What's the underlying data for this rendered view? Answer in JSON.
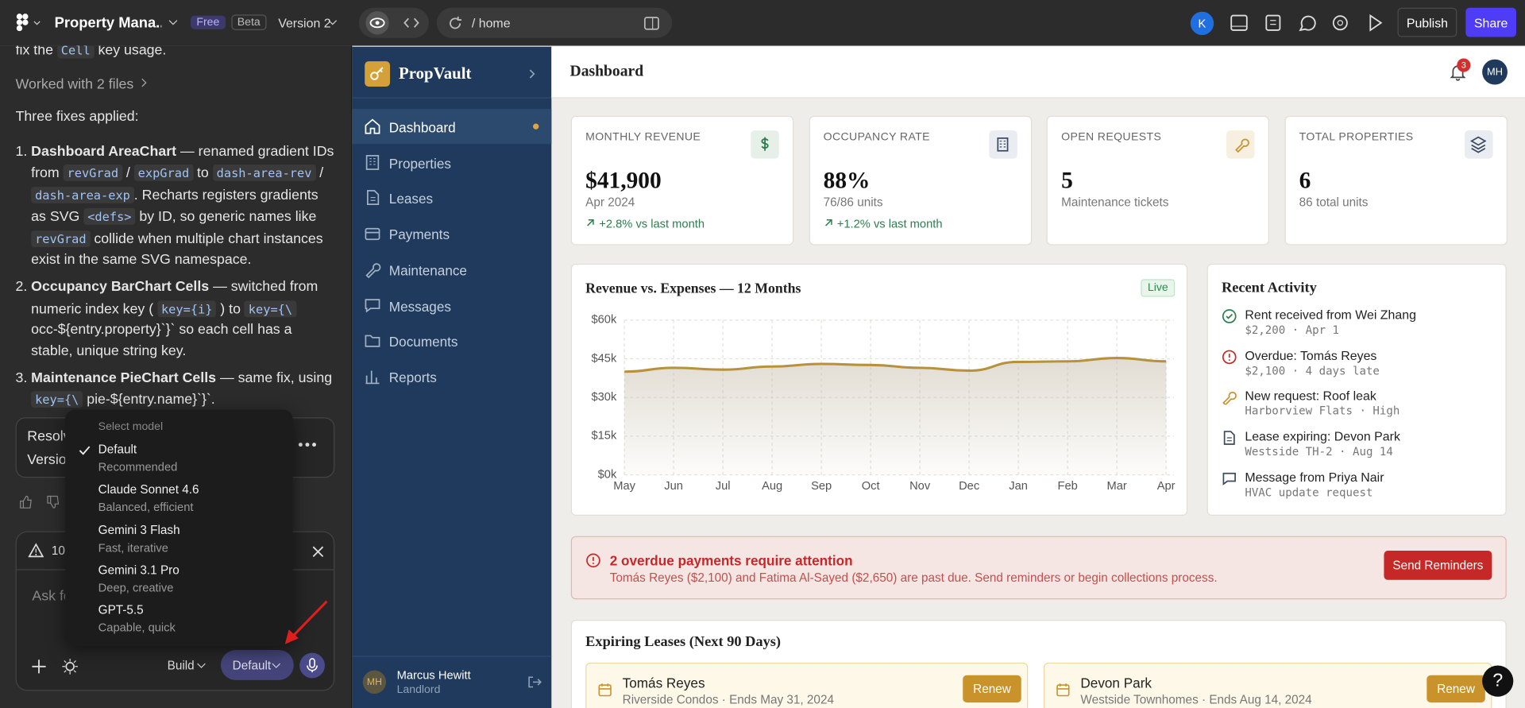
{
  "topbar": {
    "project": "Property Mana...",
    "plan": "Free",
    "badge": "Beta",
    "version": "Version 2",
    "url": "/ home",
    "avatar": "K",
    "publish": "Publish",
    "share": "Share"
  },
  "chat": {
    "intro": [
      {
        "t": "fix the "
      },
      {
        "t": "Cell",
        "code": true
      },
      {
        "t": " key usage."
      }
    ],
    "worked": "Worked with 2 files",
    "summary": "Three fixes applied:",
    "fixes": [
      [
        {
          "t": "Dashboard AreaChart",
          "bold": true
        },
        {
          "t": " — renamed gradient IDs from "
        },
        {
          "t": "revGrad",
          "code": true
        },
        {
          "t": " / "
        },
        {
          "t": "expGrad",
          "code": true
        },
        {
          "t": " to "
        },
        {
          "t": "dash-area-rev",
          "code": true
        },
        {
          "t": " / "
        },
        {
          "t": "dash-area-exp",
          "code": true
        },
        {
          "t": ". Recharts registers gradients as SVG "
        },
        {
          "t": "<defs>",
          "code": true
        },
        {
          "t": " by ID, so generic names like "
        },
        {
          "t": "revGrad",
          "code": true
        },
        {
          "t": " collide when multiple chart instances exist in the same SVG namespace."
        }
      ],
      [
        {
          "t": "Occupancy BarChart Cells",
          "bold": true
        },
        {
          "t": " — switched from numeric index key ( "
        },
        {
          "t": "key={i}",
          "code": true
        },
        {
          "t": " ) to "
        },
        {
          "t": "key={\\",
          "code": true
        },
        {
          "t": " occ-${entry.property}`}` so each cell has a stable, unique string key."
        }
      ],
      [
        {
          "t": "Maintenance PieChart Cells",
          "bold": true
        },
        {
          "t": " — same fix, using "
        },
        {
          "t": "key={\\",
          "code": true
        },
        {
          "t": " pie-${entry.name}`}`."
        }
      ]
    ],
    "card": [
      "Resolv",
      "Versio"
    ],
    "warning": "10·",
    "placeholder": "Ask fo",
    "mode": "Build",
    "model": "Default"
  },
  "model_menu": {
    "heading": "Select model",
    "options": [
      {
        "name": "Default",
        "desc": "Recommended",
        "selected": true
      },
      {
        "name": "Claude Sonnet 4.6",
        "desc": "Balanced, efficient"
      },
      {
        "name": "Gemini 3 Flash",
        "desc": "Fast, iterative"
      },
      {
        "name": "Gemini 3.1 Pro",
        "desc": "Deep, creative"
      },
      {
        "name": "GPT-5.5",
        "desc": "Capable, quick"
      }
    ]
  },
  "app": {
    "brand": "PropVault",
    "nav": [
      {
        "label": "Dashboard",
        "active": true
      },
      {
        "label": "Properties"
      },
      {
        "label": "Leases"
      },
      {
        "label": "Payments"
      },
      {
        "label": "Maintenance"
      },
      {
        "label": "Messages"
      },
      {
        "label": "Documents"
      },
      {
        "label": "Reports"
      }
    ],
    "user": {
      "initials": "MH",
      "name": "Marcus Hewitt",
      "role": "Landlord"
    },
    "header": {
      "title": "Dashboard",
      "notifications": "3",
      "initials": "MH"
    },
    "stats": [
      {
        "label": "MONTHLY REVENUE",
        "value": "$41,900",
        "sub": "Apr 2024",
        "trend": "+2.8% vs last month"
      },
      {
        "label": "OCCUPANCY RATE",
        "value": "88%",
        "sub": "76/86 units",
        "trend": "+1.2% vs last month"
      },
      {
        "label": "OPEN REQUESTS",
        "value": "5",
        "sub": "Maintenance tickets"
      },
      {
        "label": "TOTAL PROPERTIES",
        "value": "6",
        "sub": "86 total units"
      }
    ],
    "activity": {
      "title": "Recent Activity",
      "items": [
        {
          "title": "Rent received from Wei Zhang",
          "detail": "$2,200 · Apr 1",
          "icon": "check"
        },
        {
          "title": "Overdue: Tomás Reyes",
          "detail": "$2,100 · 4 days late",
          "icon": "alert"
        },
        {
          "title": "New request: Roof leak",
          "detail": "Harborview Flats · High",
          "icon": "wrench"
        },
        {
          "title": "Lease expiring: Devon Park",
          "detail": "Westside TH-2 · Aug 14",
          "icon": "file"
        },
        {
          "title": "Message from Priya Nair",
          "detail": "HVAC update request",
          "icon": "message"
        }
      ]
    },
    "alert": {
      "title": "2 overdue payments require attention",
      "text": "Tomás Reyes ($2,100) and Fatima Al-Sayed ($2,650) are past due. Send reminders or begin collections process.",
      "action": "Send Reminders"
    },
    "leases": {
      "title": "Expiring Leases (Next 90 Days)",
      "items": [
        {
          "tenant": "Tomás Reyes",
          "detail": "Riverside Condos · Ends May 31, 2024",
          "action": "Renew"
        },
        {
          "tenant": "Devon Park",
          "detail": "Westside Townhomes · Ends Aug 14, 2024",
          "action": "Renew"
        }
      ]
    },
    "help": "?"
  },
  "chart_data": {
    "type": "line",
    "title": "Revenue vs. Expenses — 12 Months",
    "badge": "Live",
    "categories": [
      "May",
      "Jun",
      "Jul",
      "Aug",
      "Sep",
      "Oct",
      "Nov",
      "Dec",
      "Jan",
      "Feb",
      "Mar",
      "Apr"
    ],
    "series": [
      {
        "color": "#b8923a",
        "values": [
          40,
          41.5,
          40.8,
          42,
          43,
          42.6,
          41.5,
          40.4,
          43.8,
          44,
          45.3,
          44
        ]
      }
    ],
    "ylim": [
      0,
      60
    ],
    "yticks": [
      {
        "value": 0,
        "label": "$0k"
      },
      {
        "value": 15,
        "label": "$15k"
      },
      {
        "value": 30,
        "label": "$30k"
      },
      {
        "value": 45,
        "label": "$45k"
      },
      {
        "value": 60,
        "label": "$60k"
      }
    ],
    "grid": true
  }
}
